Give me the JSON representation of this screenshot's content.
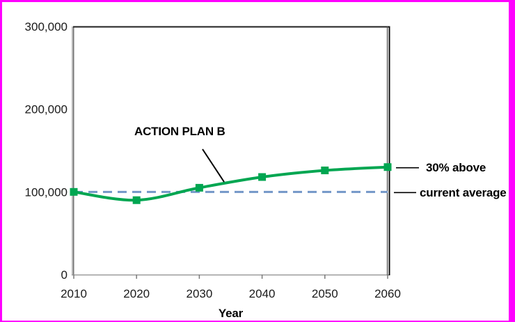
{
  "frame": {
    "color": "#ff00ff"
  },
  "colors": {
    "background": "#ffffff",
    "tick_text": "#1a1a1a",
    "leader_line": "#000000",
    "axis_dark": "#1a1a1a",
    "axis_gray": "#808080",
    "series_green": "#00a651",
    "reference_blue": "#7397c8"
  },
  "chart_data": {
    "type": "line",
    "title": "",
    "xlabel": "Year",
    "ylabel": "",
    "x": [
      2010,
      2020,
      2030,
      2040,
      2050,
      2060
    ],
    "series": [
      {
        "name": "ACTION PLAN B",
        "values": [
          100000,
          90000,
          105000,
          118000,
          126000,
          130000
        ],
        "color": "#00a651",
        "marker": "square",
        "line_style": "solid",
        "smooth": true
      }
    ],
    "reference_line": {
      "label": "current average",
      "value": 100000,
      "color": "#7397c8",
      "style": "dashed"
    },
    "xlim": [
      2010,
      2060
    ],
    "ylim": [
      0,
      300000
    ],
    "x_tick_labels": [
      "2010",
      "2020",
      "2030",
      "2040",
      "2050",
      "2060"
    ],
    "y_ticks": [
      0,
      100000,
      200000,
      300000
    ],
    "y_tick_labels": [
      "0",
      "100,000",
      "200,000",
      "300,000"
    ],
    "grid": false,
    "legend": false,
    "annotations": [
      {
        "text": "ACTION PLAN B",
        "annotates": "series curve"
      },
      {
        "text": "30% above",
        "annotates": "value at 2060"
      },
      {
        "text": "current average",
        "annotates": "dashed reference line"
      }
    ]
  }
}
